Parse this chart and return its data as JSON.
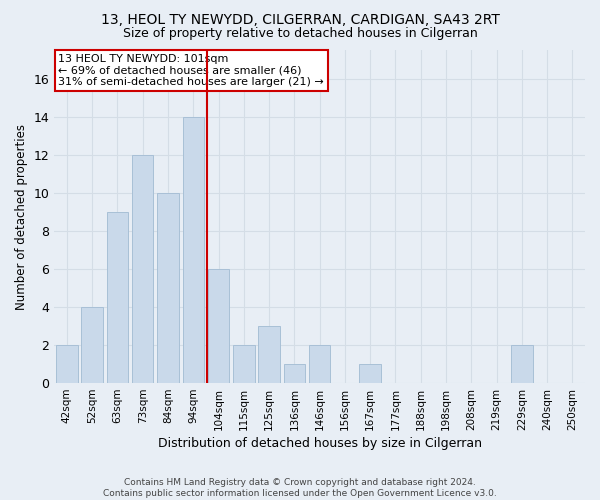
{
  "title": "13, HEOL TY NEWYDD, CILGERRAN, CARDIGAN, SA43 2RT",
  "subtitle": "Size of property relative to detached houses in Cilgerran",
  "xlabel": "Distribution of detached houses by size in Cilgerran",
  "ylabel": "Number of detached properties",
  "footer_line1": "Contains HM Land Registry data © Crown copyright and database right 2024.",
  "footer_line2": "Contains public sector information licensed under the Open Government Licence v3.0.",
  "bar_labels": [
    "42sqm",
    "52sqm",
    "63sqm",
    "73sqm",
    "84sqm",
    "94sqm",
    "104sqm",
    "115sqm",
    "125sqm",
    "136sqm",
    "146sqm",
    "156sqm",
    "167sqm",
    "177sqm",
    "188sqm",
    "198sqm",
    "208sqm",
    "219sqm",
    "229sqm",
    "240sqm",
    "250sqm"
  ],
  "bar_values": [
    2,
    4,
    9,
    12,
    10,
    14,
    6,
    2,
    3,
    1,
    2,
    0,
    1,
    0,
    0,
    0,
    0,
    0,
    2,
    0,
    0
  ],
  "bar_color": "#c9d9ea",
  "bar_edge_color": "#a8c0d6",
  "grid_color": "#d4dde6",
  "bg_color": "#e8eef5",
  "annotation_text": "13 HEOL TY NEWYDD: 101sqm\n← 69% of detached houses are smaller (46)\n31% of semi-detached houses are larger (21) →",
  "annotation_box_color": "#ffffff",
  "annotation_box_edge_color": "#cc0000",
  "vline_color": "#cc0000",
  "vline_index": 5.55,
  "ylim": [
    0,
    17.5
  ],
  "yticks": [
    0,
    2,
    4,
    6,
    8,
    10,
    12,
    14,
    16
  ],
  "title_fontsize": 10,
  "subtitle_fontsize": 9
}
